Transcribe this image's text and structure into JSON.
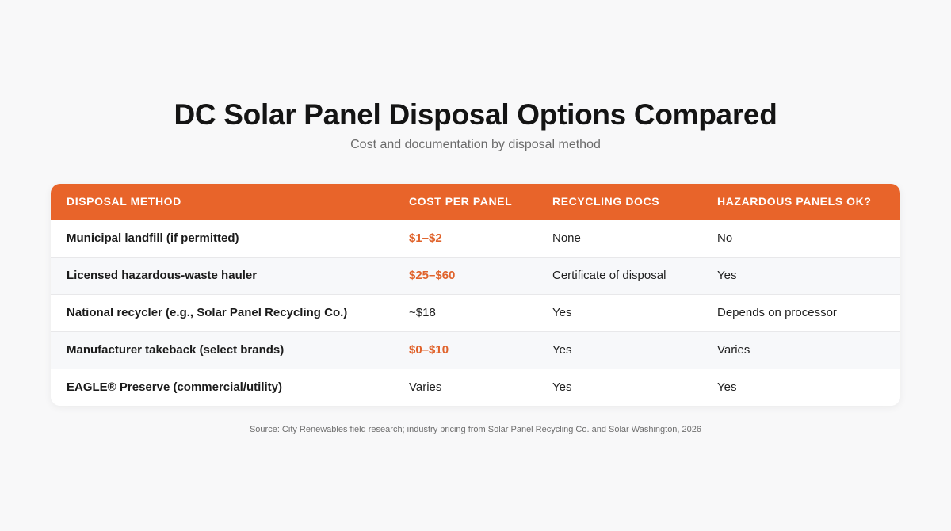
{
  "header": {
    "title": "DC Solar Panel Disposal Options Compared",
    "subtitle": "Cost and documentation by disposal method"
  },
  "table": {
    "columns": [
      "Disposal Method",
      "Cost Per Panel",
      "Recycling Docs",
      "Hazardous Panels OK?"
    ],
    "rows": [
      {
        "method": "Municipal landfill (if permitted)",
        "cost": "$1–$2",
        "cost_highlighted": true,
        "docs": "None",
        "hazardous_ok": "No"
      },
      {
        "method": "Licensed hazardous-waste hauler",
        "cost": "$25–$60",
        "cost_highlighted": true,
        "docs": "Certificate of disposal",
        "hazardous_ok": "Yes"
      },
      {
        "method": "National recycler (e.g., Solar Panel Recycling Co.)",
        "cost": "~$18",
        "cost_highlighted": false,
        "docs": "Yes",
        "hazardous_ok": "Depends on processor"
      },
      {
        "method": "Manufacturer takeback (select brands)",
        "cost": "$0–$10",
        "cost_highlighted": true,
        "docs": "Yes",
        "hazardous_ok": "Varies"
      },
      {
        "method": "EAGLE® Preserve (commercial/utility)",
        "cost": "Varies",
        "cost_highlighted": false,
        "docs": "Yes",
        "hazardous_ok": "Yes"
      }
    ]
  },
  "footer": {
    "source": "Source: City Renewables field research; industry pricing from Solar Panel Recycling Co. and Solar Washington, 2026"
  },
  "colors": {
    "header_accent": "#e8642a",
    "cost_highlight": "#e0622a",
    "background": "#f8f8f9"
  }
}
